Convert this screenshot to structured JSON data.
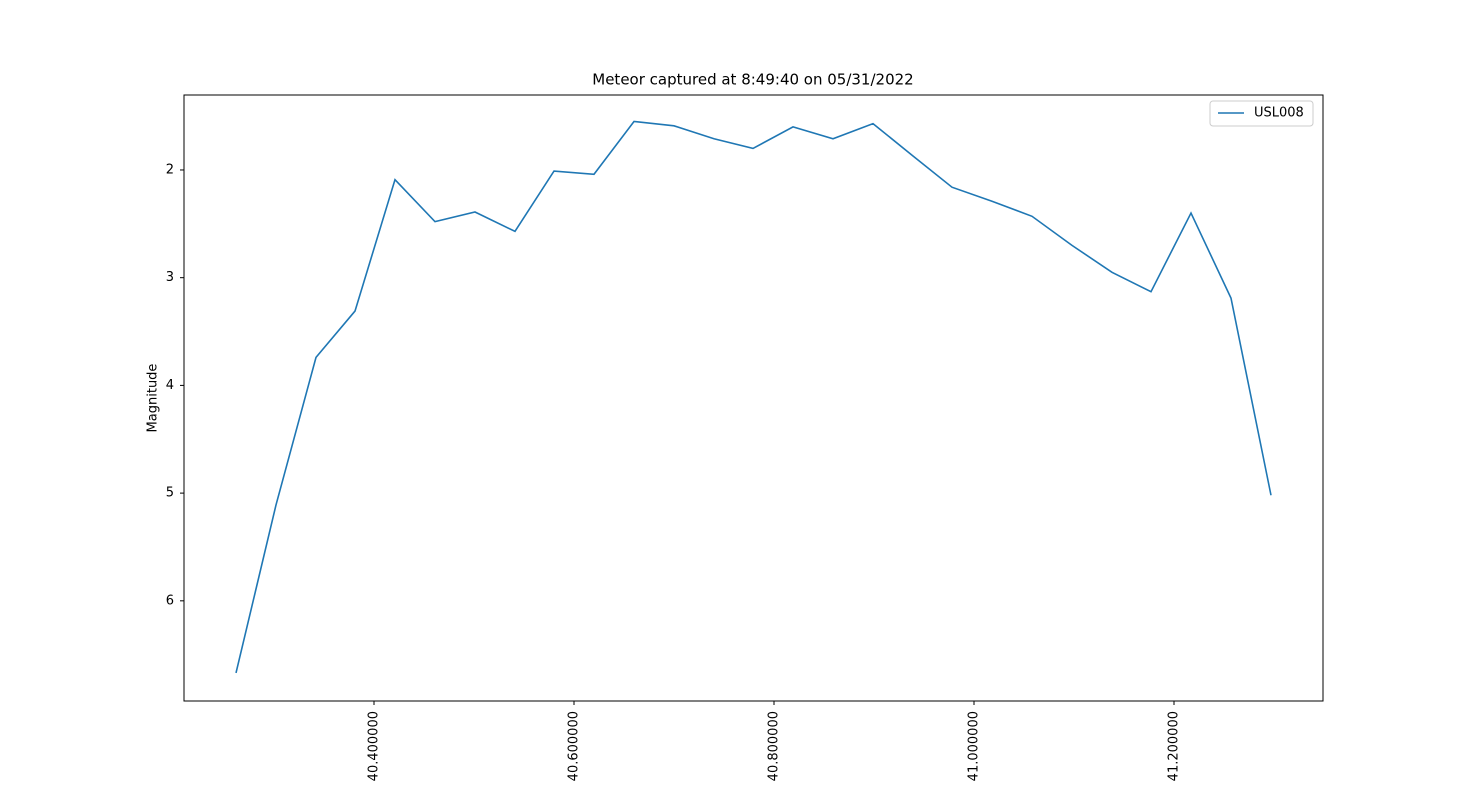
{
  "chart_data": {
    "type": "line",
    "title": "Meteor captured at 8:49:40 on 05/31/2022",
    "y_label": "Magnitude",
    "y_inverted": true,
    "legend_position": "upper right",
    "xlim": [
      40.21,
      41.349
    ],
    "ylim": [
      1.304,
      6.93
    ],
    "xticks": [
      {
        "value": 40.4,
        "label": "40.400000"
      },
      {
        "value": 40.6,
        "label": "40.600000"
      },
      {
        "value": 40.8,
        "label": "40.800000"
      },
      {
        "value": 41.0,
        "label": "41.000000"
      },
      {
        "value": 41.2,
        "label": "41.200000"
      }
    ],
    "yticks": [
      2,
      3,
      4,
      5,
      6
    ],
    "x": [
      40.262,
      40.302,
      40.342,
      40.381,
      40.421,
      40.461,
      40.501,
      40.541,
      40.58,
      40.62,
      40.66,
      40.7,
      40.74,
      40.779,
      40.819,
      40.859,
      40.899,
      40.939,
      40.978,
      41.018,
      41.058,
      41.098,
      41.138,
      41.177,
      41.217,
      41.257,
      41.297
    ],
    "series": [
      {
        "name": "USL008",
        "color": "#1f77b4",
        "values": [
          6.67,
          5.11,
          3.74,
          3.31,
          2.09,
          2.48,
          2.39,
          2.57,
          2.01,
          2.04,
          1.55,
          1.59,
          1.71,
          1.8,
          1.6,
          1.71,
          1.57,
          1.87,
          2.16,
          2.29,
          2.43,
          2.7,
          2.95,
          3.13,
          2.4,
          3.19,
          5.02
        ]
      }
    ]
  }
}
